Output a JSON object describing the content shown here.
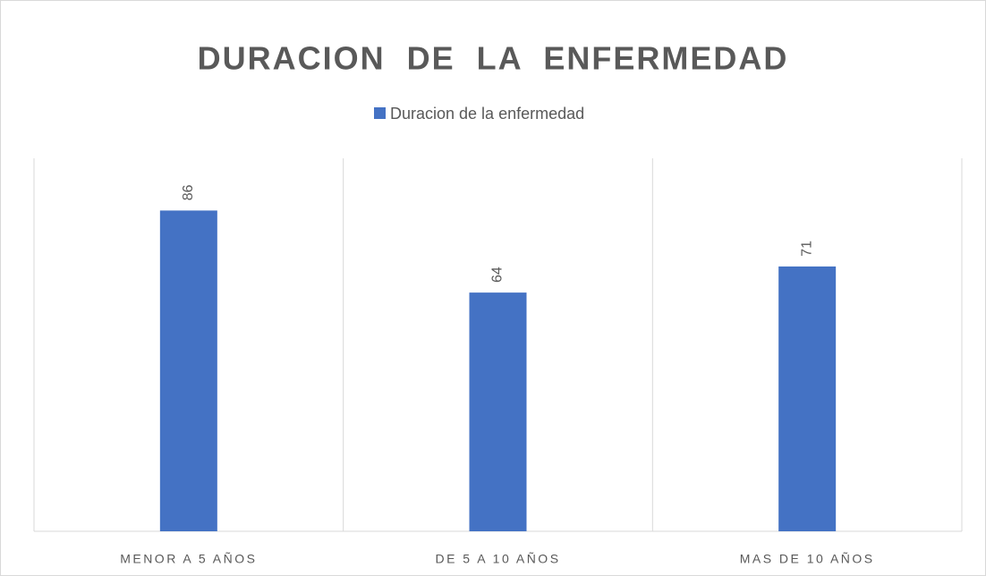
{
  "chart_data": {
    "type": "bar",
    "title": "DURACION  DE  LA  ENFERMEDAD",
    "categories": [
      "MENOR A 5 AÑOS",
      "DE 5 A 10 AÑOS",
      "MAS DE 10 AÑOS"
    ],
    "series": [
      {
        "name": "Duracion de la enfermedad",
        "color": "#4472c4",
        "values": [
          86,
          64,
          71
        ]
      }
    ],
    "ylim": [
      0,
      100
    ],
    "legend": "top"
  }
}
